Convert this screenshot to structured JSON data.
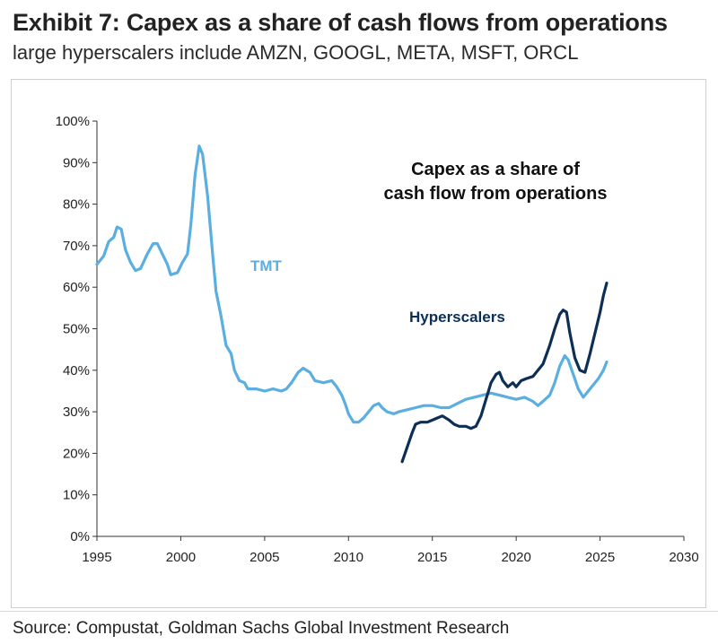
{
  "header": {
    "title": "Exhibit 7: Capex as a share of cash flows from operations",
    "subtitle": "large hyperscalers include AMZN, GOOGL, META, MSFT, ORCL"
  },
  "footer": {
    "source": "Source: Compustat, Goldman Sachs Global Investment Research"
  },
  "chart_data": {
    "type": "line",
    "title": "Capex as a share of cash flow from operations",
    "xlabel": "",
    "ylabel": "",
    "xlim": [
      1995,
      2030
    ],
    "ylim": [
      0,
      100
    ],
    "x_ticks": [
      1995,
      2000,
      2005,
      2010,
      2015,
      2020,
      2025,
      2030
    ],
    "y_ticks": [
      0,
      10,
      20,
      30,
      40,
      50,
      60,
      70,
      80,
      90,
      100
    ],
    "y_tick_labels": [
      "0%",
      "10%",
      "20%",
      "30%",
      "40%",
      "50%",
      "60%",
      "70%",
      "80%",
      "90%",
      "100%"
    ],
    "grid": false,
    "annotations": [
      {
        "text": "Capex as a share of",
        "anchor": "top-right"
      },
      {
        "text": "cash flow from operations",
        "anchor": "top-right"
      }
    ],
    "series": [
      {
        "name": "TMT",
        "color": "#5aaee0",
        "points": [
          [
            1995.0,
            65.5
          ],
          [
            1995.4,
            67.5
          ],
          [
            1995.7,
            71
          ],
          [
            1996.0,
            72
          ],
          [
            1996.2,
            74.5
          ],
          [
            1996.45,
            74
          ],
          [
            1996.7,
            69
          ],
          [
            1997.0,
            66
          ],
          [
            1997.3,
            64
          ],
          [
            1997.6,
            64.5
          ],
          [
            1998.0,
            68
          ],
          [
            1998.35,
            70.5
          ],
          [
            1998.6,
            70.5
          ],
          [
            1998.9,
            68
          ],
          [
            1999.2,
            65.5
          ],
          [
            1999.4,
            63
          ],
          [
            1999.8,
            63.5
          ],
          [
            2000.1,
            66
          ],
          [
            2000.4,
            68
          ],
          [
            2000.6,
            75
          ],
          [
            2000.85,
            87
          ],
          [
            2001.1,
            94
          ],
          [
            2001.3,
            92
          ],
          [
            2001.6,
            82
          ],
          [
            2001.9,
            68
          ],
          [
            2002.1,
            59
          ],
          [
            2002.4,
            53
          ],
          [
            2002.7,
            46
          ],
          [
            2003.0,
            44
          ],
          [
            2003.2,
            40
          ],
          [
            2003.5,
            37.5
          ],
          [
            2003.8,
            37
          ],
          [
            2004.0,
            35.5
          ],
          [
            2004.5,
            35.5
          ],
          [
            2005.0,
            35
          ],
          [
            2005.5,
            35.5
          ],
          [
            2006.0,
            35
          ],
          [
            2006.3,
            35.5
          ],
          [
            2006.6,
            37
          ],
          [
            2007.0,
            39.5
          ],
          [
            2007.3,
            40.5
          ],
          [
            2007.7,
            39.5
          ],
          [
            2008.0,
            37.5
          ],
          [
            2008.5,
            37
          ],
          [
            2009.0,
            37.5
          ],
          [
            2009.3,
            36
          ],
          [
            2009.6,
            34
          ],
          [
            2009.8,
            32
          ],
          [
            2010.0,
            29.5
          ],
          [
            2010.3,
            27.5
          ],
          [
            2010.6,
            27.5
          ],
          [
            2010.9,
            28.5
          ],
          [
            2011.2,
            30
          ],
          [
            2011.5,
            31.5
          ],
          [
            2011.8,
            32
          ],
          [
            2012.0,
            31
          ],
          [
            2012.3,
            30
          ],
          [
            2012.7,
            29.5
          ],
          [
            2013.0,
            30
          ],
          [
            2013.5,
            30.5
          ],
          [
            2014.0,
            31
          ],
          [
            2014.5,
            31.5
          ],
          [
            2015.0,
            31.5
          ],
          [
            2015.5,
            31
          ],
          [
            2016.0,
            31
          ],
          [
            2016.5,
            32
          ],
          [
            2017.0,
            33
          ],
          [
            2017.5,
            33.5
          ],
          [
            2018.0,
            34
          ],
          [
            2018.5,
            34.5
          ],
          [
            2019.0,
            34
          ],
          [
            2019.5,
            33.5
          ],
          [
            2020.0,
            33
          ],
          [
            2020.5,
            33.5
          ],
          [
            2021.0,
            32.5
          ],
          [
            2021.3,
            31.5
          ],
          [
            2021.6,
            32.5
          ],
          [
            2022.0,
            34
          ],
          [
            2022.3,
            37
          ],
          [
            2022.6,
            41
          ],
          [
            2022.9,
            43.5
          ],
          [
            2023.1,
            42.5
          ],
          [
            2023.4,
            39
          ],
          [
            2023.7,
            35.5
          ],
          [
            2024.0,
            33.5
          ],
          [
            2024.3,
            35
          ],
          [
            2024.6,
            36.5
          ],
          [
            2024.9,
            38
          ],
          [
            2025.2,
            40
          ],
          [
            2025.4,
            42
          ]
        ]
      },
      {
        "name": "Hyperscalers",
        "color": "#0d2f55",
        "points": [
          [
            2013.2,
            18
          ],
          [
            2013.5,
            21.5
          ],
          [
            2013.8,
            25
          ],
          [
            2014.0,
            27
          ],
          [
            2014.3,
            27.5
          ],
          [
            2014.7,
            27.5
          ],
          [
            2015.0,
            28
          ],
          [
            2015.3,
            28.5
          ],
          [
            2015.6,
            29
          ],
          [
            2016.0,
            28
          ],
          [
            2016.3,
            27
          ],
          [
            2016.6,
            26.5
          ],
          [
            2017.0,
            26.5
          ],
          [
            2017.3,
            26
          ],
          [
            2017.6,
            26.5
          ],
          [
            2017.9,
            29
          ],
          [
            2018.2,
            33
          ],
          [
            2018.5,
            37
          ],
          [
            2018.8,
            39
          ],
          [
            2019.0,
            39.5
          ],
          [
            2019.2,
            37.5
          ],
          [
            2019.5,
            36
          ],
          [
            2019.8,
            37
          ],
          [
            2020.0,
            36
          ],
          [
            2020.3,
            37.5
          ],
          [
            2020.6,
            38
          ],
          [
            2021.0,
            38.5
          ],
          [
            2021.3,
            40
          ],
          [
            2021.6,
            41.5
          ],
          [
            2022.0,
            46
          ],
          [
            2022.3,
            50
          ],
          [
            2022.6,
            53.5
          ],
          [
            2022.8,
            54.5
          ],
          [
            2023.0,
            54
          ],
          [
            2023.2,
            49
          ],
          [
            2023.5,
            43
          ],
          [
            2023.8,
            40
          ],
          [
            2024.1,
            39.5
          ],
          [
            2024.4,
            44
          ],
          [
            2024.7,
            49
          ],
          [
            2025.0,
            54
          ],
          [
            2025.2,
            58
          ],
          [
            2025.4,
            61
          ]
        ]
      }
    ]
  }
}
